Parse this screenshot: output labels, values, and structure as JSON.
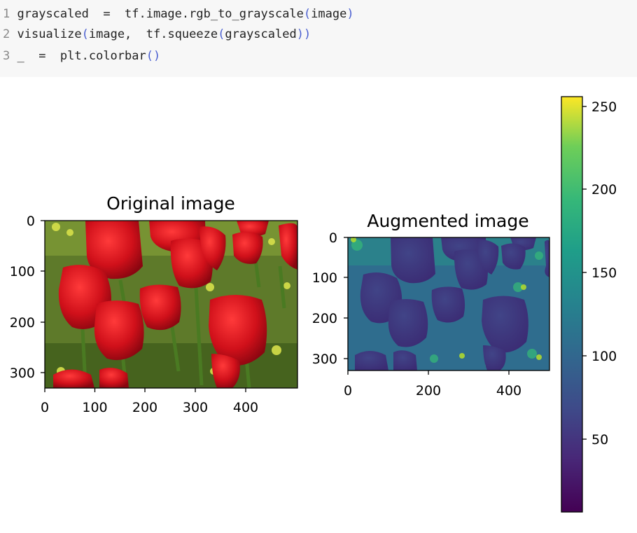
{
  "code": {
    "lines": [
      {
        "num": "1",
        "tokens": [
          {
            "t": "grayscaled  =  tf.image.rgb_to_grayscale",
            "c": "t"
          },
          {
            "t": "(",
            "c": "b"
          },
          {
            "t": "image",
            "c": "t"
          },
          {
            "t": ")",
            "c": "b"
          }
        ]
      },
      {
        "num": "2",
        "tokens": [
          {
            "t": "visualize",
            "c": "t"
          },
          {
            "t": "(",
            "c": "b"
          },
          {
            "t": "image,  tf.squeeze",
            "c": "t"
          },
          {
            "t": "(",
            "c": "b"
          },
          {
            "t": "grayscaled",
            "c": "t"
          },
          {
            "t": "))",
            "c": "b"
          }
        ]
      },
      {
        "num": "3",
        "tokens": [
          {
            "t": "_  =  plt.colorbar",
            "c": "t"
          },
          {
            "t": "()",
            "c": "b"
          }
        ]
      }
    ]
  },
  "figure": {
    "original": {
      "title": "Original image",
      "xticks": [
        "0",
        "100",
        "200",
        "300",
        "400"
      ],
      "yticks": [
        "0",
        "100",
        "200",
        "300"
      ]
    },
    "augmented": {
      "title": "Augmented image",
      "xticks": [
        "0",
        "200",
        "400"
      ],
      "yticks": [
        "0",
        "100",
        "200",
        "300"
      ]
    },
    "colorbar": {
      "ticks": [
        "250",
        "200",
        "150",
        "100",
        "50"
      ],
      "colormap": "viridis"
    }
  },
  "colors": {
    "code_bg": "#f7f7f7",
    "bracket": "#4a5fd0",
    "line_number": "#888888"
  }
}
